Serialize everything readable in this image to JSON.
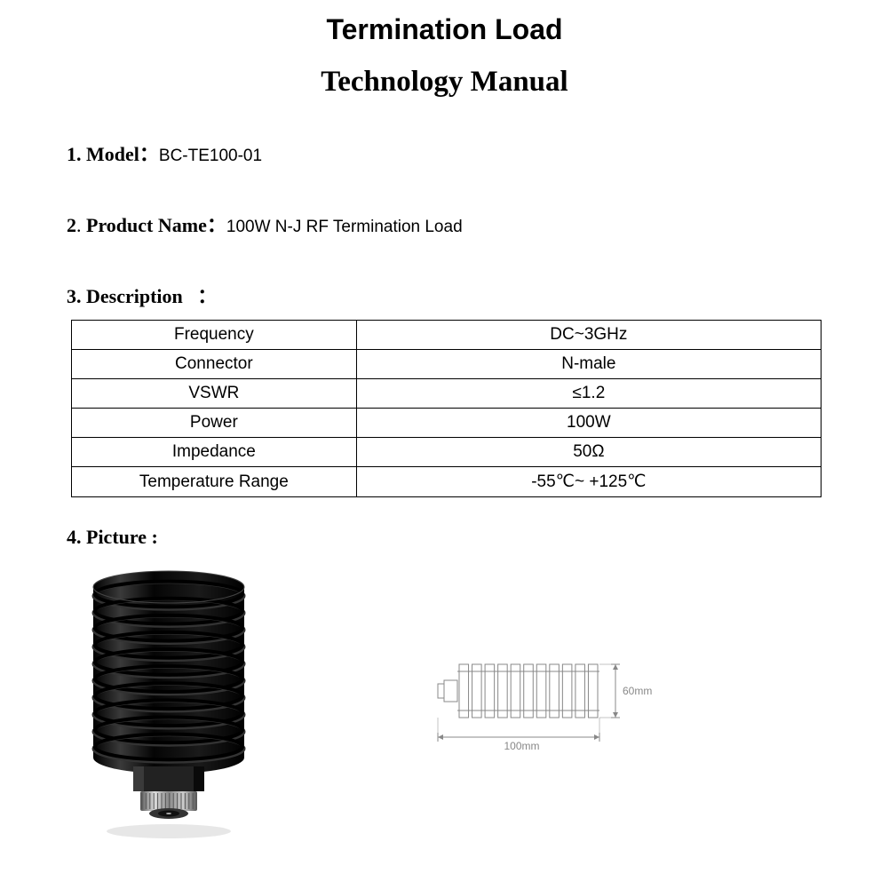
{
  "title1": "Termination Load",
  "title2": "Technology Manual",
  "sections": {
    "model": {
      "num": "1.",
      "label": "Model",
      "sep": "：",
      "value": "BC-TE100-01"
    },
    "product_name": {
      "num": "2",
      "label": "Product Name",
      "sep": "：",
      "value": "100W N-J RF Termination Load"
    },
    "description": {
      "num": "3.",
      "label": "Description",
      "sep": "："
    },
    "picture": {
      "num": "4.",
      "label": "Picture :",
      "sep": ""
    }
  },
  "spec_table": {
    "rows": [
      {
        "param": "Frequency",
        "value": "DC~3GHz"
      },
      {
        "param": "Connector",
        "value": "N-male"
      },
      {
        "param": "VSWR",
        "value": "≤1.2"
      },
      {
        "param": "Power",
        "value": "100W"
      },
      {
        "param": "Impedance",
        "value": "50Ω"
      },
      {
        "param": "Temperature Range",
        "value": "-55℃~ +125℃"
      }
    ]
  },
  "diagram": {
    "width_label": "100mm",
    "height_label": "60mm",
    "fin_count": 11,
    "body_color": "#cccccc",
    "line_color": "#888888"
  },
  "photo": {
    "body_color": "#0a0a0a",
    "body_highlight": "#2a2a2a",
    "connector_color": "#888888",
    "connector_dark": "#555555",
    "fin_count": 10
  }
}
